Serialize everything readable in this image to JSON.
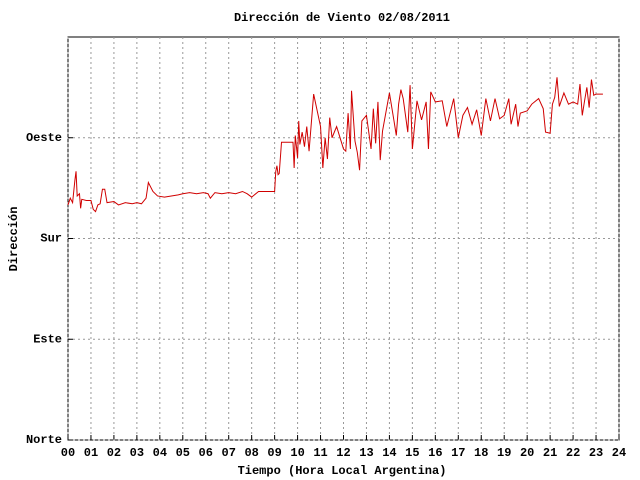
{
  "chart_data": {
    "type": "line",
    "title": "Dirección de Viento 02/08/2011",
    "x_label": "Tiempo (Hora Local Argentina)",
    "y_label": "Dirección",
    "grid": true,
    "xlim": [
      0,
      24
    ],
    "xticks": [
      {
        "value": 0,
        "label": "00"
      },
      {
        "value": 1,
        "label": "01"
      },
      {
        "value": 2,
        "label": "02"
      },
      {
        "value": 3,
        "label": "03"
      },
      {
        "value": 4,
        "label": "04"
      },
      {
        "value": 5,
        "label": "05"
      },
      {
        "value": 6,
        "label": "06"
      },
      {
        "value": 7,
        "label": "07"
      },
      {
        "value": 8,
        "label": "08"
      },
      {
        "value": 9,
        "label": "09"
      },
      10,
      11,
      12,
      13,
      14,
      15,
      16,
      17,
      18,
      19,
      20,
      21,
      22,
      23,
      24
    ],
    "ylim": [
      0,
      360
    ],
    "yticks": [
      {
        "value": 0,
        "label": "Norte"
      },
      {
        "value": 90,
        "label": "Este"
      },
      {
        "value": 180,
        "label": "Sur"
      },
      {
        "value": 270,
        "label": "Oeste"
      }
    ],
    "x": [
      0.0,
      0.1,
      0.2,
      0.3,
      0.35,
      0.4,
      0.5,
      0.55,
      0.6,
      0.8,
      1.0,
      1.1,
      1.2,
      1.3,
      1.4,
      1.5,
      1.6,
      1.7,
      2.0,
      2.2,
      2.5,
      2.8,
      3.0,
      3.2,
      3.4,
      3.5,
      3.7,
      3.9,
      4.2,
      4.5,
      4.8,
      5.0,
      5.3,
      5.6,
      5.9,
      6.1,
      6.2,
      6.4,
      6.7,
      7.0,
      7.3,
      7.6,
      7.8,
      8.0,
      8.3,
      8.6,
      8.8,
      9.0,
      9.05,
      9.1,
      9.15,
      9.2,
      9.3,
      9.6,
      9.8,
      9.85,
      9.9,
      10.0,
      10.05,
      10.1,
      10.2,
      10.3,
      10.4,
      10.5,
      10.7,
      11.0,
      11.1,
      11.2,
      11.3,
      11.4,
      11.5,
      11.7,
      12.0,
      12.1,
      12.2,
      12.3,
      12.35,
      12.5,
      12.6,
      12.7,
      12.8,
      13.0,
      13.2,
      13.3,
      13.4,
      13.5,
      13.6,
      13.7,
      14.0,
      14.2,
      14.3,
      14.4,
      14.5,
      14.6,
      14.7,
      14.8,
      14.9,
      15.0,
      15.2,
      15.4,
      15.6,
      15.7,
      15.8,
      16.0,
      16.3,
      16.5,
      16.8,
      17.0,
      17.2,
      17.4,
      17.6,
      17.8,
      18.0,
      18.2,
      18.4,
      18.6,
      18.8,
      19.0,
      19.2,
      19.3,
      19.5,
      19.6,
      19.7,
      20.0,
      20.2,
      20.5,
      20.7,
      20.8,
      21.0,
      21.1,
      21.2,
      21.3,
      21.4,
      21.6,
      21.8,
      22.0,
      22.2,
      22.3,
      22.4,
      22.5,
      22.6,
      22.7,
      22.8,
      22.9,
      23.0,
      23.3
    ],
    "series": [
      {
        "color": "#d00000",
        "values": [
          210,
          216,
          212,
          232,
          240,
          218,
          220,
          207,
          215,
          214,
          214,
          206,
          204,
          210,
          211,
          224,
          224,
          212,
          213,
          210,
          212,
          211,
          212,
          211,
          216,
          230,
          222,
          218,
          217,
          218,
          219,
          220,
          221,
          220,
          221,
          220,
          216,
          221,
          220,
          221,
          220,
          222,
          220,
          217,
          222,
          222,
          222,
          222,
          240,
          245,
          237,
          238,
          266,
          266,
          266,
          243,
          272,
          252,
          285,
          264,
          275,
          262,
          280,
          258,
          309,
          280,
          243,
          270,
          251,
          288,
          270,
          280,
          260,
          258,
          292,
          260,
          312,
          267,
          257,
          241,
          285,
          290,
          260,
          296,
          265,
          302,
          250,
          276,
          310,
          285,
          272,
          300,
          313,
          305,
          290,
          275,
          317,
          260,
          303,
          286,
          302,
          260,
          311,
          302,
          303,
          280,
          305,
          270,
          290,
          297,
          282,
          295,
          272,
          305,
          285,
          305,
          287,
          290,
          305,
          282,
          300,
          280,
          292,
          294,
          300,
          305,
          296,
          275,
          274,
          300,
          306,
          324,
          298,
          310,
          300,
          302,
          300,
          318,
          290,
          303,
          315,
          297,
          322,
          308,
          309,
          309
        ]
      }
    ]
  }
}
